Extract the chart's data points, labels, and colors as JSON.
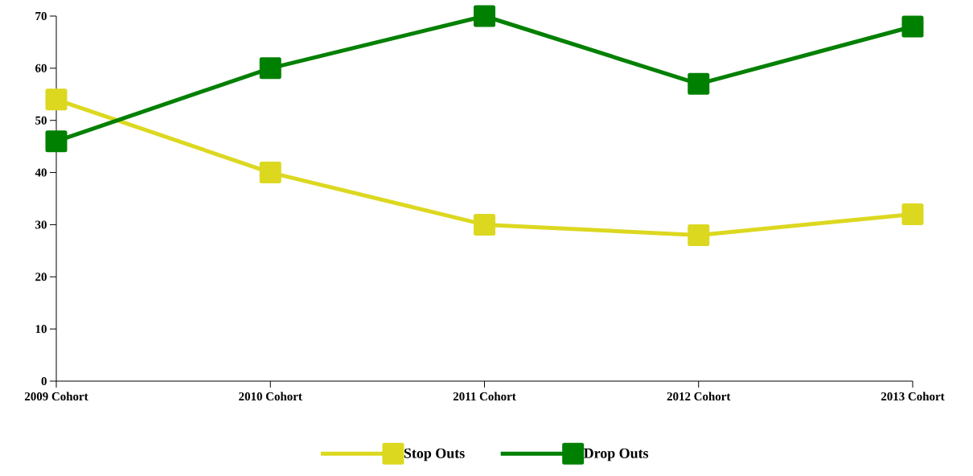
{
  "chart_data": {
    "type": "line",
    "categories": [
      "2009 Cohort",
      "2010 Cohort",
      "2011 Cohort",
      "2012 Cohort",
      "2013 Cohort"
    ],
    "series": [
      {
        "name": "Stop Outs",
        "color": "#dcd820",
        "values": [
          54,
          40,
          30,
          28,
          32
        ]
      },
      {
        "name": "Drop Outs",
        "color": "#008000",
        "values": [
          46,
          60,
          70,
          57,
          68
        ]
      }
    ],
    "ylim": [
      0,
      70
    ],
    "yticks": [
      0,
      10,
      20,
      30,
      40,
      50,
      60,
      70
    ],
    "marker": "square",
    "line_style": "solid",
    "legend": "bottom"
  }
}
